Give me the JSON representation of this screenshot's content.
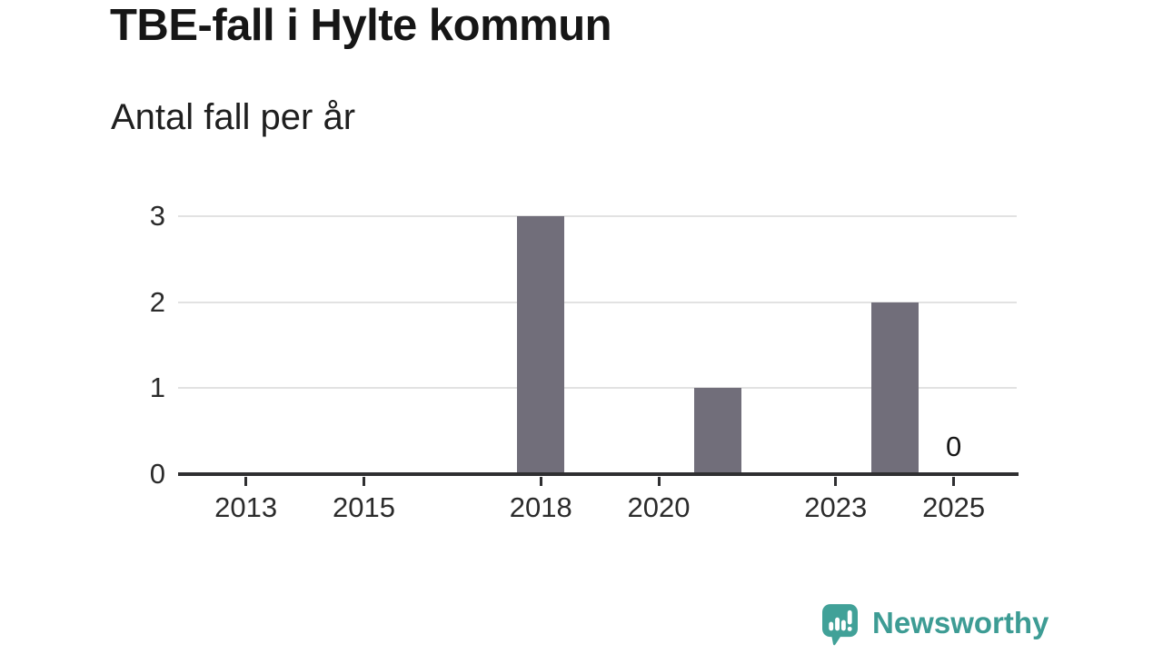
{
  "header": {
    "title": "TBE-fall i Hylte kommun",
    "subtitle": "Antal fall per år"
  },
  "chart_data": {
    "type": "bar",
    "title": "TBE-fall i Hylte kommun",
    "subtitle": "Antal fall per år",
    "x": [
      2012,
      2013,
      2014,
      2015,
      2016,
      2017,
      2018,
      2019,
      2020,
      2021,
      2022,
      2023,
      2024,
      2025
    ],
    "values": [
      0,
      0,
      0,
      0,
      0,
      0,
      3,
      0,
      0,
      1,
      0,
      0,
      2,
      0
    ],
    "x_tick_labels": [
      "2013",
      "2015",
      "2018",
      "2020",
      "2023",
      "2025"
    ],
    "x_tick_positions": [
      2013,
      2015,
      2018,
      2020,
      2023,
      2025
    ],
    "y_ticks": [
      0,
      1,
      2,
      3
    ],
    "ylim": [
      0,
      3
    ],
    "xlim": [
      2011.85,
      2026.1
    ],
    "grid": true,
    "legend": "none",
    "annotations": [
      {
        "x": 2025,
        "y": 0,
        "text": "0"
      }
    ],
    "bar_color": "#716e7a",
    "gridline_color": "#e2e2e2",
    "axis_color": "#2f2f31",
    "label_color": "#2b2b2b"
  },
  "footer": {
    "brand": "Newsworthy",
    "brand_color": "#3d9c94",
    "logo_icon": "newsworthy-speech-bubble-bar-chart-icon"
  }
}
